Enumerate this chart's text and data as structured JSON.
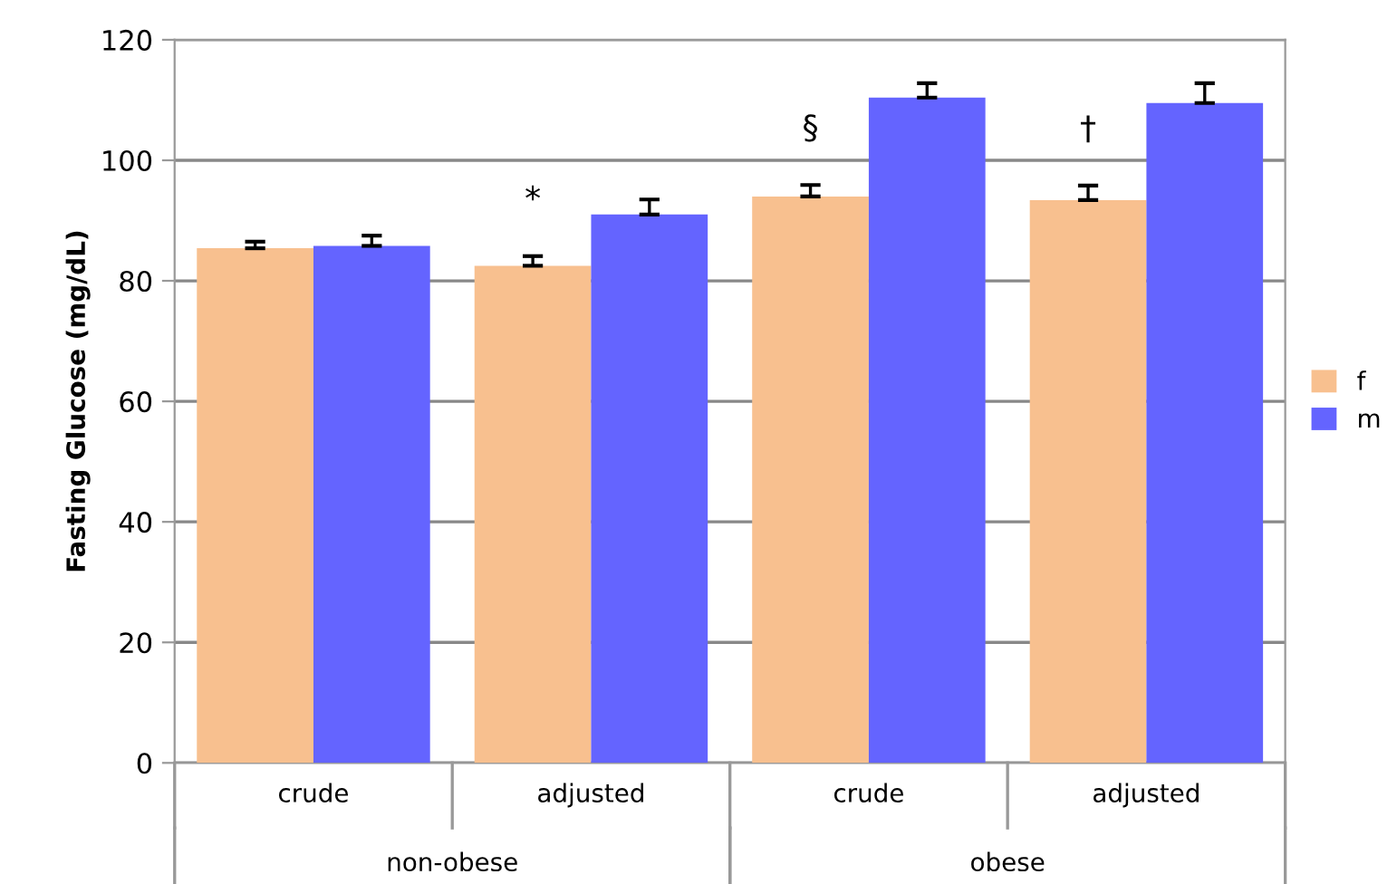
{
  "chart_data": {
    "type": "bar",
    "ylabel": "Fasting Glucose (mg/dL)",
    "categories": [
      "crude",
      "adjusted",
      "crude",
      "adjusted"
    ],
    "series": [
      {
        "name": "f",
        "color": "#f8c08f",
        "values": [
          85.4,
          82.5,
          94.0,
          93.4
        ],
        "errors": [
          1.1,
          1.6,
          1.9,
          2.4
        ]
      },
      {
        "name": "m",
        "color": "#6464ff",
        "values": [
          85.8,
          91.0,
          110.4,
          109.5
        ],
        "errors": [
          1.7,
          2.5,
          2.4,
          3.3
        ]
      }
    ],
    "ylim": [
      0,
      120
    ],
    "yticks": [
      0,
      20,
      40,
      60,
      80,
      100,
      120
    ],
    "grid": "y",
    "legend": "right",
    "annotations": [
      "*",
      "§",
      "†",
      "non-obese",
      "obese"
    ]
  }
}
